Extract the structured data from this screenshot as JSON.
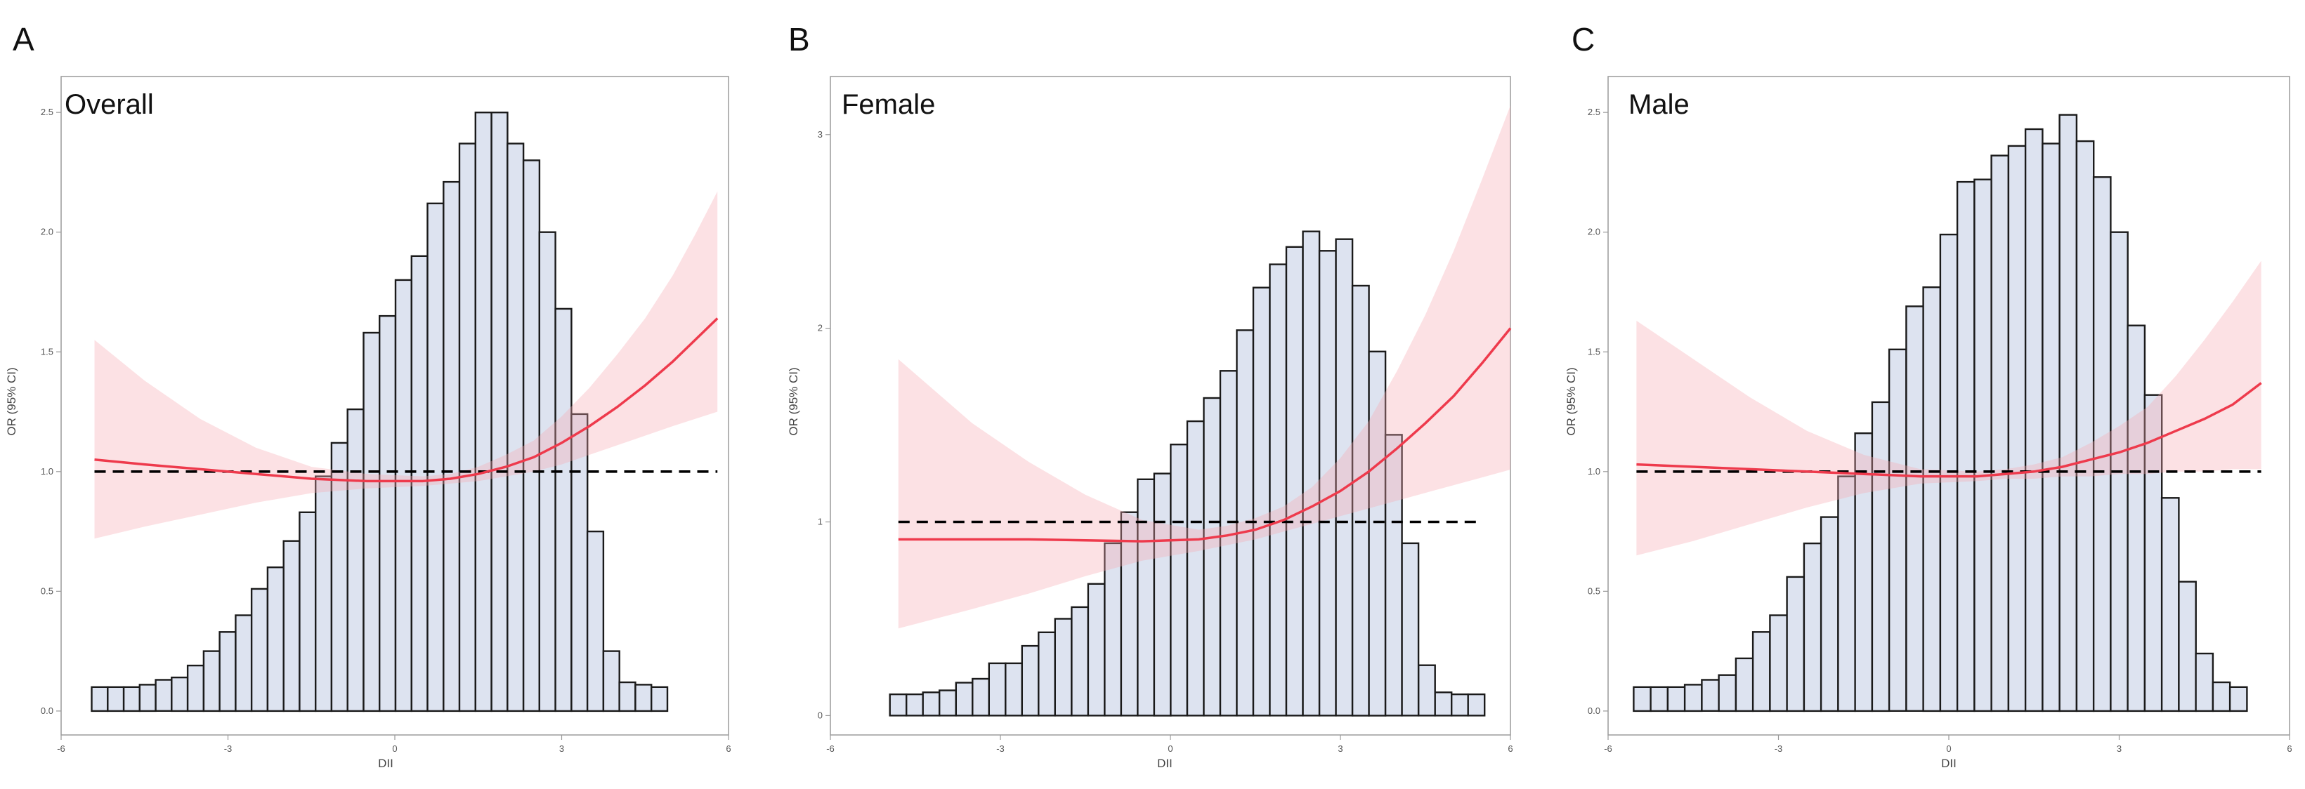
{
  "chart_data": [
    {
      "type": "bar",
      "panel_label": "A",
      "title": "Overall",
      "xlabel": "DII",
      "ylabel": "OR (95% CI)",
      "xlim": [
        -6,
        6
      ],
      "ylim": [
        -0.1,
        2.65
      ],
      "xticks": [
        -6,
        -3,
        0,
        3,
        6
      ],
      "yticks": [
        0.0,
        0.5,
        1.0,
        1.5,
        2.0,
        2.5
      ],
      "ytick_labels": [
        "0.0",
        "0.5",
        "1.0",
        "1.5",
        "2.0",
        "2.5"
      ],
      "grid": false,
      "histogram": {
        "x_start": -5.45,
        "bin_width": 0.2875,
        "heights": [
          0.1,
          0.1,
          0.1,
          0.11,
          0.13,
          0.14,
          0.19,
          0.25,
          0.33,
          0.4,
          0.51,
          0.6,
          0.71,
          0.83,
          0.98,
          1.12,
          1.26,
          1.58,
          1.65,
          1.8,
          1.9,
          2.12,
          2.21,
          2.37,
          2.5,
          2.5,
          2.37,
          2.3,
          2.0,
          1.68,
          1.24,
          0.75,
          0.25,
          0.12,
          0.11,
          0.1
        ]
      },
      "reference_line": {
        "y": 1.0,
        "x_range": [
          -5.4,
          5.8
        ]
      },
      "curve": {
        "x": [
          -5.4,
          -4.5,
          -3.5,
          -2.5,
          -1.5,
          -0.5,
          0.5,
          1.0,
          1.5,
          2.0,
          2.5,
          3.0,
          3.5,
          4.0,
          4.5,
          5.0,
          5.4,
          5.8
        ],
        "y": [
          1.05,
          1.03,
          1.01,
          0.99,
          0.97,
          0.96,
          0.96,
          0.97,
          0.99,
          1.02,
          1.06,
          1.12,
          1.19,
          1.27,
          1.36,
          1.46,
          1.55,
          1.64
        ]
      },
      "ci_band": {
        "x": [
          -5.4,
          -4.5,
          -3.5,
          -2.5,
          -1.5,
          -0.5,
          0.5,
          1.0,
          1.5,
          2.0,
          2.5,
          3.0,
          3.5,
          4.0,
          4.5,
          5.0,
          5.4,
          5.8
        ],
        "lower": [
          0.72,
          0.77,
          0.82,
          0.87,
          0.91,
          0.93,
          0.94,
          0.95,
          0.96,
          0.98,
          1.0,
          1.03,
          1.07,
          1.11,
          1.15,
          1.19,
          1.22,
          1.25
        ],
        "upper": [
          1.55,
          1.38,
          1.22,
          1.1,
          1.02,
          0.99,
          0.98,
          0.99,
          1.02,
          1.07,
          1.13,
          1.23,
          1.35,
          1.49,
          1.64,
          1.82,
          1.99,
          2.17
        ]
      }
    },
    {
      "type": "bar",
      "panel_label": "B",
      "title": "Female",
      "xlabel": "DII",
      "ylabel": "OR (95% CI)",
      "xlim": [
        -6,
        6
      ],
      "ylim": [
        -0.1,
        3.3
      ],
      "xticks": [
        -6,
        -3,
        0,
        3,
        6
      ],
      "yticks": [
        0,
        1,
        2,
        3
      ],
      "ytick_labels": [
        "0",
        "1",
        "2",
        "3"
      ],
      "grid": false,
      "histogram": {
        "x_start": -4.95,
        "bin_width": 0.2915,
        "heights": [
          0.11,
          0.11,
          0.12,
          0.13,
          0.17,
          0.19,
          0.27,
          0.27,
          0.36,
          0.43,
          0.5,
          0.56,
          0.68,
          0.89,
          1.05,
          1.22,
          1.25,
          1.4,
          1.52,
          1.64,
          1.78,
          1.99,
          2.21,
          2.33,
          2.42,
          2.5,
          2.4,
          2.46,
          2.22,
          1.88,
          1.45,
          0.89,
          0.26,
          0.12,
          0.11,
          0.11
        ]
      },
      "reference_line": {
        "y": 1.0,
        "x_range": [
          -4.8,
          5.4
        ]
      },
      "curve": {
        "x": [
          -4.8,
          -3.5,
          -2.5,
          -1.5,
          -0.5,
          0.5,
          1.0,
          1.5,
          2.0,
          2.5,
          3.0,
          3.5,
          4.0,
          4.5,
          5.0,
          5.5,
          6.0
        ],
        "y": [
          0.91,
          0.91,
          0.91,
          0.905,
          0.9,
          0.91,
          0.93,
          0.96,
          1.01,
          1.08,
          1.16,
          1.26,
          1.38,
          1.51,
          1.65,
          1.82,
          2.0
        ]
      },
      "ci_band": {
        "x": [
          -4.8,
          -3.5,
          -2.5,
          -1.5,
          -0.5,
          0.5,
          1.0,
          1.5,
          2.0,
          2.5,
          3.0,
          3.5,
          4.0,
          4.5,
          5.0,
          5.5,
          6.0
        ],
        "lower": [
          0.45,
          0.55,
          0.63,
          0.72,
          0.8,
          0.85,
          0.88,
          0.91,
          0.95,
          0.99,
          1.03,
          1.07,
          1.11,
          1.15,
          1.19,
          1.23,
          1.27
        ],
        "upper": [
          1.84,
          1.51,
          1.31,
          1.14,
          1.01,
          0.96,
          0.98,
          1.02,
          1.08,
          1.18,
          1.33,
          1.52,
          1.78,
          2.07,
          2.4,
          2.77,
          3.15
        ]
      }
    },
    {
      "type": "bar",
      "panel_label": "C",
      "title": "Male",
      "xlabel": "DII",
      "ylabel": "OR (95% CI)",
      "xlim": [
        -6,
        6
      ],
      "ylim": [
        -0.1,
        2.65
      ],
      "xticks": [
        -6,
        -3,
        0,
        3,
        6
      ],
      "yticks": [
        0.0,
        0.5,
        1.0,
        1.5,
        2.0,
        2.5
      ],
      "ytick_labels": [
        "0.0",
        "0.5",
        "1.0",
        "1.5",
        "2.0",
        "2.5"
      ],
      "grid": false,
      "histogram": {
        "x_start": -5.55,
        "bin_width": 0.3,
        "heights": [
          0.1,
          0.1,
          0.1,
          0.11,
          0.13,
          0.15,
          0.22,
          0.33,
          0.4,
          0.56,
          0.7,
          0.81,
          0.98,
          1.16,
          1.29,
          1.51,
          1.69,
          1.77,
          1.99,
          2.21,
          2.22,
          2.32,
          2.36,
          2.43,
          2.37,
          2.49,
          2.38,
          2.23,
          2.0,
          1.61,
          1.32,
          0.89,
          0.54,
          0.24,
          0.12,
          0.1
        ]
      },
      "reference_line": {
        "y": 1.0,
        "x_range": [
          -5.5,
          5.5
        ]
      },
      "curve": {
        "x": [
          -5.5,
          -4.5,
          -3.5,
          -2.5,
          -1.5,
          -0.5,
          0.5,
          1.0,
          1.5,
          2.0,
          2.5,
          3.0,
          3.5,
          4.0,
          4.5,
          5.0,
          5.5
        ],
        "y": [
          1.03,
          1.02,
          1.01,
          1.0,
          0.99,
          0.98,
          0.98,
          0.99,
          1.0,
          1.02,
          1.05,
          1.08,
          1.12,
          1.17,
          1.22,
          1.28,
          1.37
        ]
      },
      "ci_band": {
        "x": [
          -5.5,
          -4.5,
          -3.5,
          -2.5,
          -1.5,
          -0.5,
          0.5,
          1.0,
          1.5,
          2.0,
          2.5,
          3.0,
          3.5,
          4.0,
          4.5,
          5.0,
          5.5
        ],
        "lower": [
          0.65,
          0.71,
          0.78,
          0.85,
          0.91,
          0.95,
          0.96,
          0.97,
          0.97,
          0.98,
          0.98,
          0.99,
          0.99,
          1.0,
          1.0,
          1.01,
          1.01
        ],
        "upper": [
          1.63,
          1.47,
          1.31,
          1.17,
          1.07,
          1.01,
          1.0,
          1.01,
          1.03,
          1.06,
          1.12,
          1.19,
          1.27,
          1.4,
          1.55,
          1.71,
          1.88
        ]
      }
    }
  ]
}
